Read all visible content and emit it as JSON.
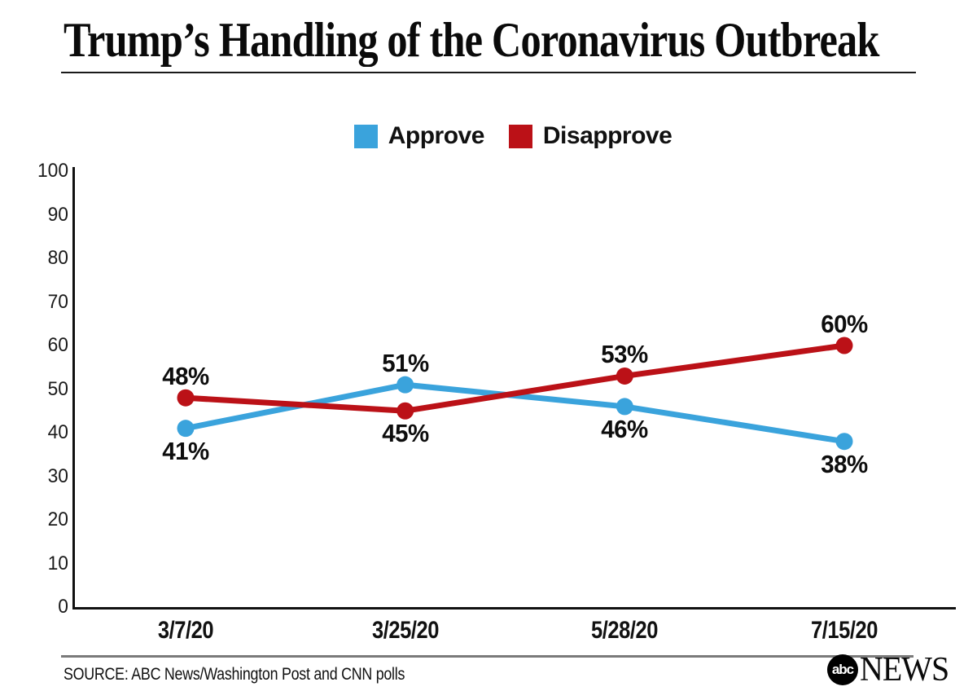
{
  "header": {
    "title": "Trump’s Handling of the Coronavirus Outbreak"
  },
  "chart_data": {
    "type": "line",
    "title": "Trump’s Handling of the Coronavirus Outbreak",
    "x": [
      "3/7/20",
      "3/25/20",
      "5/28/20",
      "7/15/20"
    ],
    "series": [
      {
        "name": "Approve",
        "color": "#3AA3DC",
        "values": [
          41,
          51,
          46,
          38
        ],
        "labels": [
          "41%",
          "51%",
          "46%",
          "38%"
        ],
        "label_positions": [
          "below",
          "above",
          "below",
          "below"
        ]
      },
      {
        "name": "Disapprove",
        "color": "#BB1117",
        "values": [
          48,
          45,
          53,
          60
        ],
        "labels": [
          "48%",
          "45%",
          "53%",
          "60%"
        ],
        "label_positions": [
          "above",
          "below",
          "above",
          "above"
        ]
      }
    ],
    "ylim": [
      0,
      100
    ],
    "yticks": [
      0,
      10,
      20,
      30,
      40,
      50,
      60,
      70,
      80,
      90,
      100
    ],
    "grid": false,
    "legend_position": "top-center"
  },
  "footer": {
    "source": "SOURCE: ABC News/Washington Post and CNN polls",
    "logo_abc": "abc",
    "logo_news": "NEWS"
  }
}
